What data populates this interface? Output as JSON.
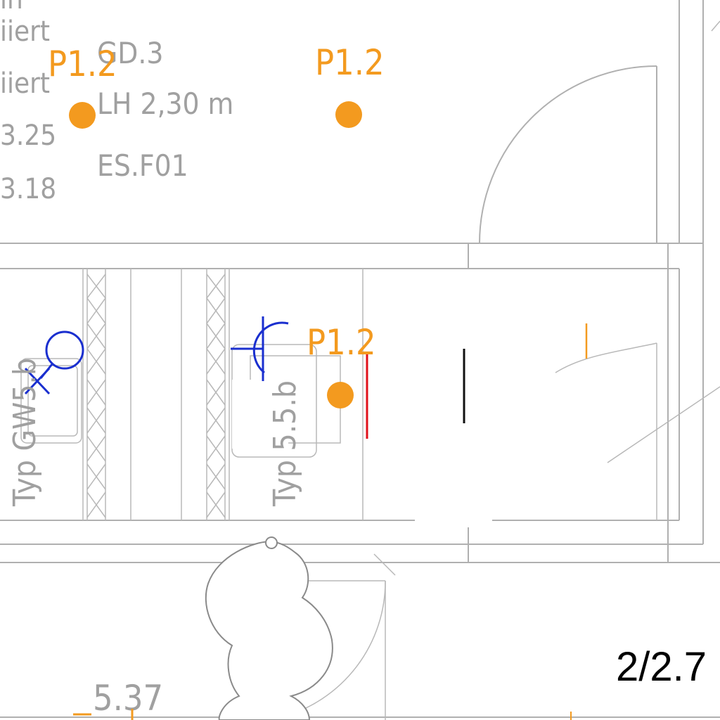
{
  "room_labels": {
    "line1": "in",
    "line2": "iiert",
    "line3": "iiert",
    "line4": "3.25",
    "line5": "3.18"
  },
  "room_info": {
    "code": "GD.3",
    "height": "LH 2,30 m",
    "finish": "ES.F01"
  },
  "markers": [
    {
      "label": "P1.2",
      "color": "#f39a1f"
    },
    {
      "label": "P1.2",
      "color": "#f39a1f"
    },
    {
      "label": "P1.2",
      "color": "#f39a1f"
    }
  ],
  "shaft_labels": {
    "left": "Typ GW5.b",
    "right": "Typ 5.5.b"
  },
  "dimension": "5.37",
  "sheet_ref": "2/2.7",
  "colors": {
    "wall": "#b0b0b0",
    "marker": "#f39a1f",
    "electrical": "#1a2fcf",
    "red_line": "#e0101a",
    "text_grey": "#a0a0a0"
  }
}
